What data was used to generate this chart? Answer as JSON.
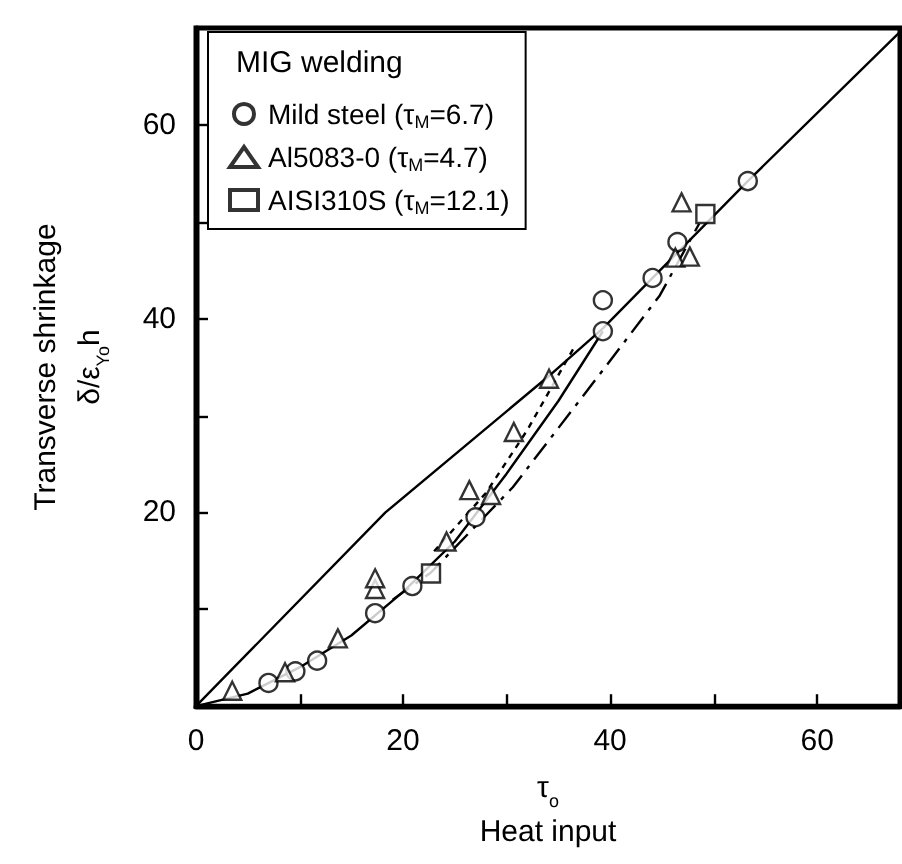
{
  "chart_data": {
    "type": "scatter",
    "xlabel": "τ$_{o}$\nHeat input",
    "ylabel": "Transverse shrinkage\nδ/ε$_{Yo}$h",
    "legend_title": "MIG welding",
    "xlim": [
      0,
      68
    ],
    "ylim": [
      0,
      70
    ],
    "xticks": [
      0,
      {
        "value": 10,
        "label": null
      },
      20,
      {
        "value": 30,
        "label": null
      },
      40,
      {
        "value": 50,
        "label": null
      },
      60
    ],
    "yticks": [
      {
        "value": 0,
        "label": null
      },
      {
        "value": 10,
        "label": null
      },
      20,
      {
        "value": 30,
        "label": null
      },
      40,
      {
        "value": 50,
        "label": null
      },
      60
    ],
    "grid": false,
    "legend": "top left",
    "series": [
      {
        "name": "Mild steel (τ$_{M}$=6.7)",
        "marker": "circle",
        "color": "#000000",
        "x": [
          7.0,
          9.6,
          11.7,
          17.3,
          20.9,
          27.0,
          39.3,
          39.3,
          44.1,
          46.5,
          53.3
        ],
        "values": [
          2.4,
          3.6,
          4.7,
          9.6,
          12.4,
          19.5,
          38.7,
          41.9,
          44.2,
          47.9,
          54.2
        ]
      },
      {
        "name": "Al5083-0 (τ$_{M}$=4.7)",
        "marker": "triangle",
        "color": "#000000",
        "x": [
          3.5,
          8.6,
          13.7,
          17.3,
          17.3,
          24.2,
          26.4,
          28.5,
          30.7,
          34.1,
          46.3,
          47.7,
          46.9
        ],
        "values": [
          1.6,
          3.5,
          7.0,
          12.1,
          13.2,
          17.0,
          22.3,
          21.8,
          28.3,
          33.8,
          46.3,
          46.4,
          52.0
        ]
      },
      {
        "name": "AISI310S (τ$_{M}$=12.1)",
        "marker": "square",
        "color": "#000000",
        "x": [
          22.7,
          49.2
        ],
        "values": [
          13.7,
          50.8
        ]
      },
      {
        "type": "line",
        "line_style": "solid",
        "marker": "none",
        "color": "#000000",
        "x": [
          0,
          18.3,
          34,
          39.3,
          44.1,
          53.3,
          68
        ],
        "values": [
          0,
          20,
          34,
          39,
          44.2,
          54.2,
          69.6
        ]
      },
      {
        "type": "line",
        "line_style": "solid",
        "marker": "none",
        "color": "#000000",
        "x": [
          0,
          5,
          10,
          15,
          20,
          25,
          30,
          35,
          39.3
        ],
        "values": [
          0,
          1.3,
          4,
          7.3,
          11.8,
          17,
          24,
          31.5,
          38.7
        ]
      },
      {
        "type": "line",
        "line_style": "dotted",
        "marker": "none",
        "color": "#000000",
        "x": [
          23,
          28,
          32,
          36.5
        ],
        "values": [
          16,
          22,
          28.5,
          37
        ]
      },
      {
        "type": "line",
        "line_style": "dashed",
        "marker": "none",
        "color": "#000000",
        "x": [
          19,
          22.7,
          30.6,
          39.6,
          44.8,
          48.6
        ],
        "values": [
          11,
          13.8,
          22.6,
          35.1,
          42.4,
          49.8
        ]
      }
    ]
  }
}
